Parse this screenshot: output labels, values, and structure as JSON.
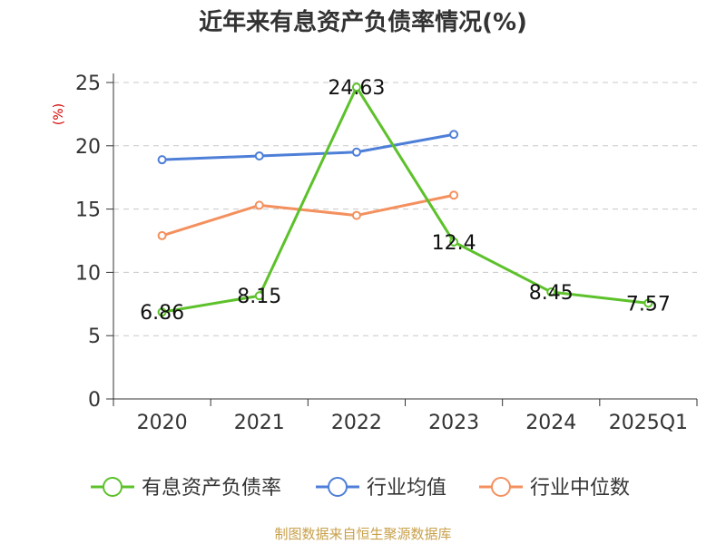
{
  "chart_data": {
    "type": "line",
    "title": "近年来有息资产负债率情况(%)",
    "ylabel": "(%)",
    "categories": [
      "2020",
      "2021",
      "2022",
      "2023",
      "2024",
      "2025Q1"
    ],
    "ylim": [
      0,
      25
    ],
    "yticks": [
      0,
      5,
      10,
      15,
      20,
      25
    ],
    "grid": true,
    "legend_position": "bottom",
    "series": [
      {
        "name": "有息资产负债率",
        "color": "#5cc12a",
        "values": [
          6.86,
          8.15,
          24.63,
          12.4,
          8.45,
          7.57
        ],
        "labels": [
          "6.86",
          "8.15",
          "24.63",
          "12.4",
          "8.45",
          "7.57"
        ]
      },
      {
        "name": "行业均值",
        "color": "#4e7fd8",
        "values": [
          18.9,
          19.2,
          19.5,
          20.9,
          null,
          null
        ]
      },
      {
        "name": "行业中位数",
        "color": "#f4905e",
        "values": [
          12.9,
          15.3,
          14.5,
          16.1,
          null,
          null
        ]
      }
    ]
  },
  "source_note": "制图数据来自恒生聚源数据库"
}
